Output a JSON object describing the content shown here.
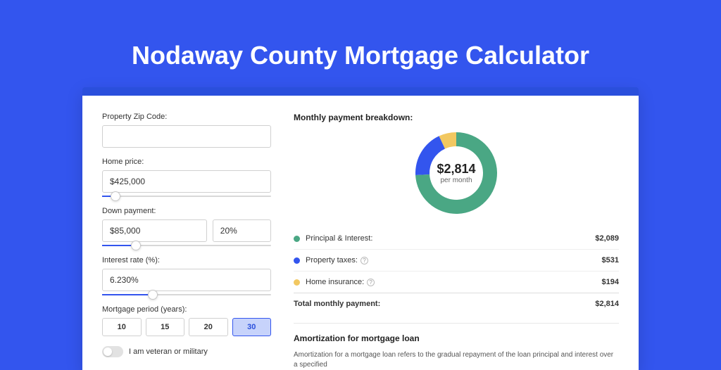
{
  "page_title": "Nodaway County Mortgage Calculator",
  "colors": {
    "page_bg": "#3355ee",
    "card_bg": "#ffffff",
    "card_accent": "#2a4fdc",
    "slider_fill": "#3355ee",
    "btn_active_bg": "#c7d3fb",
    "btn_active_border": "#3355ee"
  },
  "form": {
    "zip": {
      "label": "Property Zip Code:",
      "value": ""
    },
    "home_price": {
      "label": "Home price:",
      "value": "$425,000",
      "slider_percent": 8
    },
    "down_payment": {
      "label": "Down payment:",
      "amount": "$85,000",
      "percent": "20%",
      "slider_percent": 20
    },
    "interest_rate": {
      "label": "Interest rate (%):",
      "value": "6.230%",
      "slider_percent": 30
    },
    "mortgage_period": {
      "label": "Mortgage period (years):",
      "options": [
        "10",
        "15",
        "20",
        "30"
      ],
      "selected": "30"
    },
    "veteran": {
      "label": "I am veteran or military",
      "value": false
    }
  },
  "breakdown": {
    "title": "Monthly payment breakdown:",
    "donut": {
      "amount": "$2,814",
      "sub": "per month",
      "size": 120,
      "ring_width": 20,
      "slices": [
        {
          "key": "principal_interest",
          "value": 2089,
          "color": "#4aa784",
          "angle": 267
        },
        {
          "key": "property_taxes",
          "value": 531,
          "color": "#3355ee",
          "angle": 68
        },
        {
          "key": "home_insurance",
          "value": 194,
          "color": "#f2c861",
          "angle": 25
        }
      ]
    },
    "legend": [
      {
        "color": "#4aa784",
        "label": "Principal & Interest:",
        "value": "$2,089",
        "info": false
      },
      {
        "color": "#3355ee",
        "label": "Property taxes:",
        "value": "$531",
        "info": true
      },
      {
        "color": "#f2c861",
        "label": "Home insurance:",
        "value": "$194",
        "info": true
      }
    ],
    "total": {
      "label": "Total monthly payment:",
      "value": "$2,814"
    }
  },
  "amortization": {
    "title": "Amortization for mortgage loan",
    "text": "Amortization for a mortgage loan refers to the gradual repayment of the loan principal and interest over a specified"
  }
}
